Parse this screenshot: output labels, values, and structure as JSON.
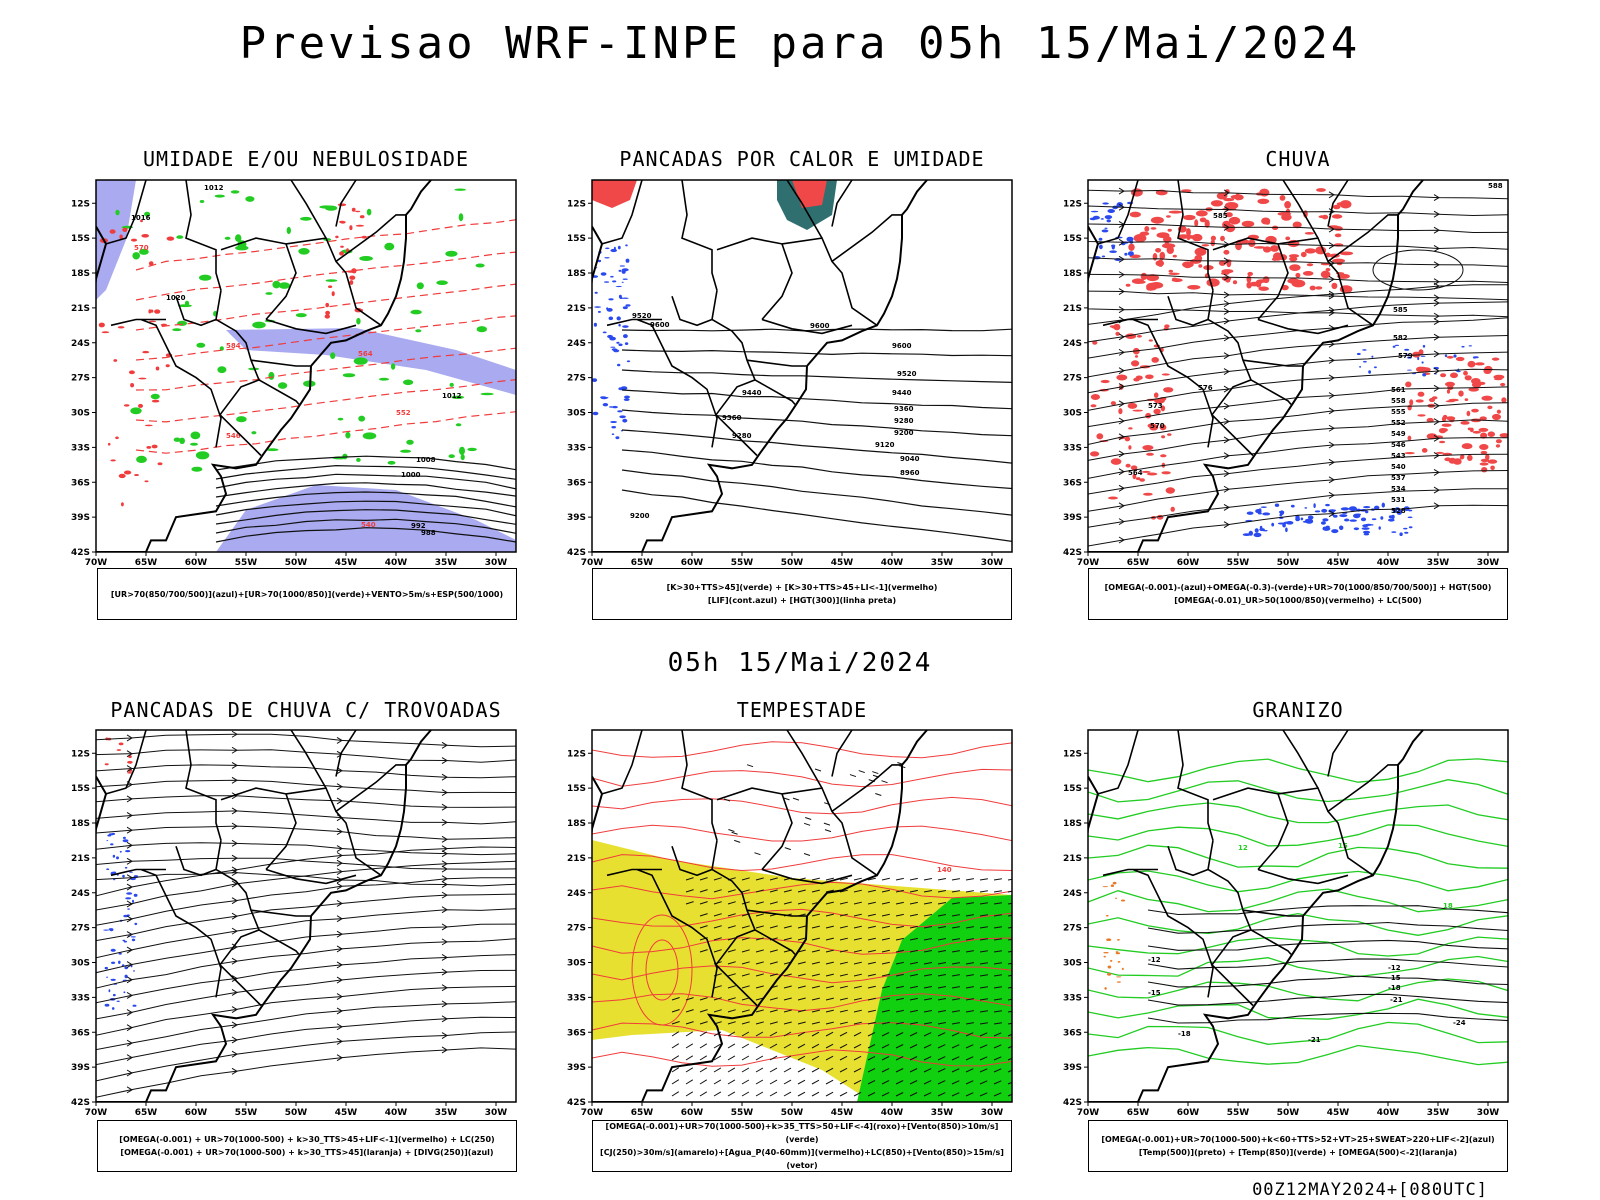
{
  "header": {
    "title": "Previsao WRF-INPE  para 05h 15/Mai/2024",
    "mid_title": "05h 15/Mai/2024",
    "footer": "00Z12MAY2024+[080UTC]"
  },
  "axes": {
    "lat_ticks": [
      "12S",
      "15S",
      "18S",
      "21S",
      "24S",
      "27S",
      "30S",
      "33S",
      "36S",
      "39S",
      "42S"
    ],
    "lon_ticks": [
      "70W",
      "65W",
      "60W",
      "55W",
      "50W",
      "45W",
      "40W",
      "35W",
      "30W"
    ]
  },
  "panels": [
    {
      "id": "umidade",
      "title": "UMIDADE E/OU NEBULOSIDADE",
      "legend": [
        "[UR>70(850/700/500)](azul)+[UR>70(1000/850)](verde)+VENTO>5m/s+ESP(500/1000)"
      ],
      "labels": [
        "1012",
        "1016",
        "1020",
        "1008",
        "1004",
        "1000",
        "996",
        "992",
        "988",
        "584",
        "576",
        "570",
        "564",
        "558",
        "552",
        "546",
        "540"
      ]
    },
    {
      "id": "pancadas-calor",
      "title": "PANCADAS POR CALOR E UMIDADE",
      "legend": [
        "[K>30+TTS>45](verde) + [K>30+TTS>45+LI<-1](vermelho)",
        "[LIF](cont.azul) + [HGT(300)](linha preta)"
      ],
      "labels": [
        "9600",
        "9520",
        "9440",
        "9360",
        "9280",
        "9200",
        "9120",
        "9040",
        "8960"
      ]
    },
    {
      "id": "chuva",
      "title": "CHUVA",
      "legend": [
        "[OMEGA(-0.001)-(azul)+OMEGA(-0.3)-(verde)+UR>70(1000/850/700/500)] + HGT(500)",
        "[OMEGA(-0.01)_UR>50(1000/850)(vermelho) + LC(500)"
      ],
      "labels": [
        "588",
        "585",
        "582",
        "579",
        "576",
        "573",
        "570",
        "567",
        "564",
        "561",
        "558",
        "555",
        "552",
        "549",
        "546",
        "543",
        "540",
        "537",
        "534",
        "531",
        "528"
      ]
    },
    {
      "id": "pancadas-trovoadas",
      "title": "PANCADAS DE CHUVA C/ TROVOADAS",
      "legend": [
        "[OMEGA(-0.001) + UR>70(1000-500) + k>30_TTS>45+LIF<-1](vermelho) + LC(250)",
        "[OMEGA(-0.001) + UR>70(1000-500) + k>30_TTS>45](laranja) + [DIVG(250)](azul)"
      ],
      "labels": []
    },
    {
      "id": "tempestade",
      "title": "TEMPESTADE",
      "legend": [
        "[OMEGA(-0.001)+UR>70(1000-500)+k>35_TTS>50+LIF<-4](roxo)+[Vento(850)>10m/s](verde)",
        "[CJ(250)>30m/s](amarelo)+[Agua_P(40-60mm)](vermelho)+LC(850)+[Vento(850)>15m/s](vetor)"
      ],
      "labels": [
        "140"
      ]
    },
    {
      "id": "granizo",
      "title": "GRANIZO",
      "legend": [
        "[OMEGA(-0.001)+UR>70(1000-500)+k<60+TTS>52+VT>25+SWEAT>220+LIF<-2](azul)",
        "[Temp(500)](preto) + [Temp(850)](verde) + [OMEGA(500)<-2](laranja)"
      ],
      "labels": [
        "-12",
        "-15",
        "-18",
        "-21",
        "-24",
        "12",
        "15",
        "18"
      ]
    }
  ],
  "colors": {
    "blue_fill": "#a9aaf0",
    "green": "#22cc22",
    "red": "#f03c3c",
    "red_fill": "#f04848",
    "blue_pts": "#2a4af0",
    "yellow": "#e8e030",
    "teal": "#2f6f6f",
    "bright_green": "#10d010"
  }
}
